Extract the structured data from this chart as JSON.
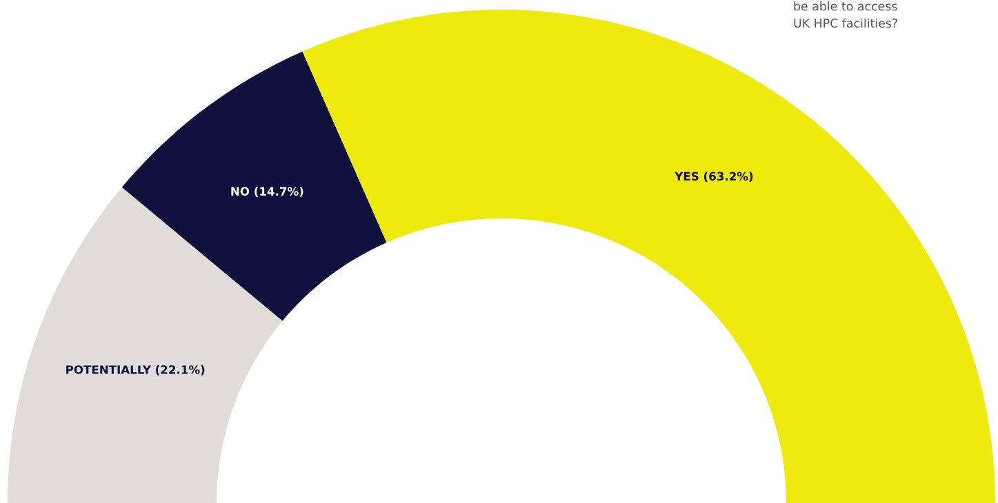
{
  "chart_data": {
    "type": "donut",
    "categories": [
      "POTENTIALLY",
      "NO",
      "YES"
    ],
    "values": [
      22.1,
      14.7,
      63.2
    ],
    "colors": [
      "#e0ddd8",
      "#10103c",
      "#eeea10"
    ],
    "value_labels": [
      "(22.1%)",
      "(14.7%)",
      "(63.2%)"
    ],
    "annotations": [
      "be able to access\nUK HPC facilities?"
    ]
  }
}
